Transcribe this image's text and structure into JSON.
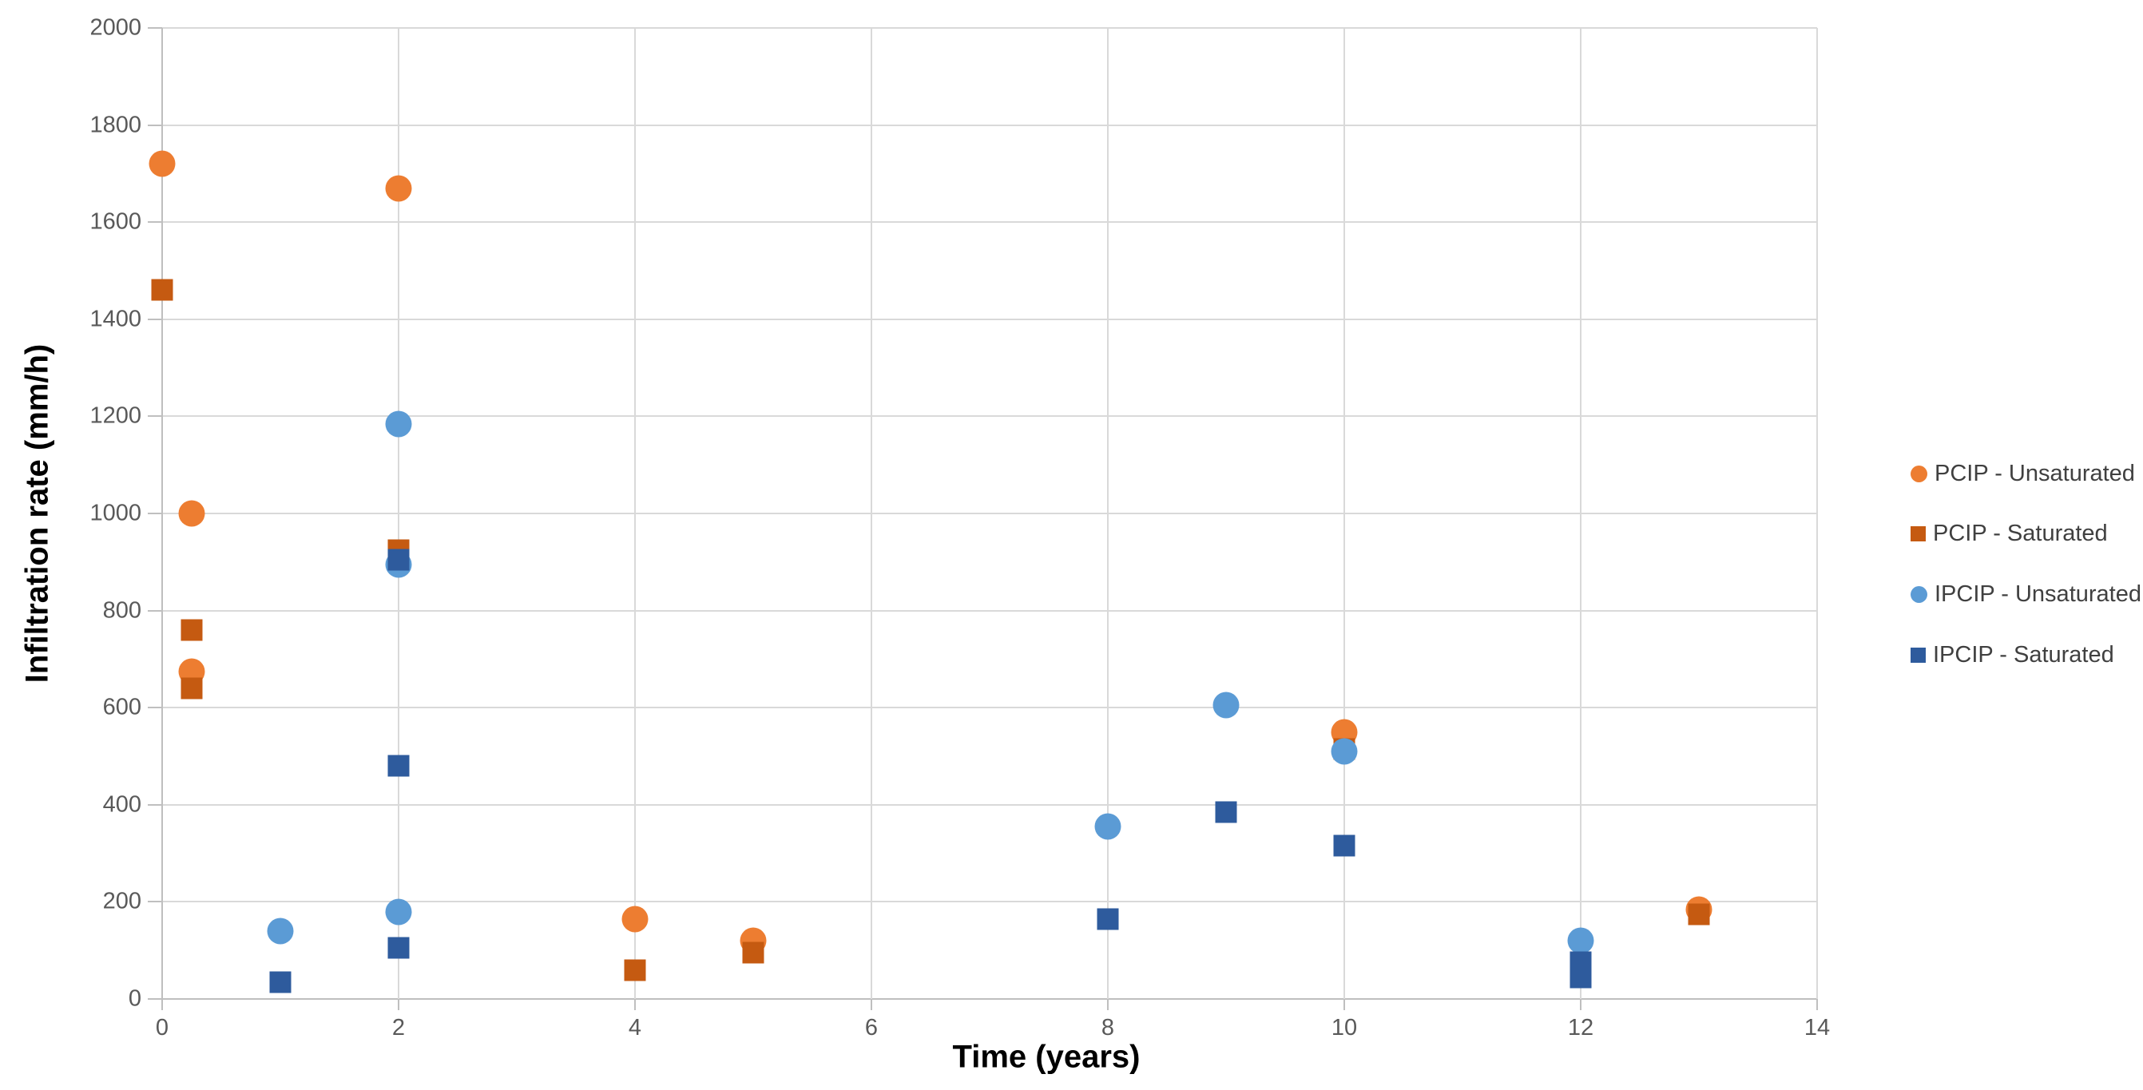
{
  "chart_data": {
    "type": "scatter",
    "title": "",
    "xlabel": "Time (years)",
    "ylabel": "Infiltration rate (mm/h)",
    "grid": true,
    "legend_position": "right",
    "background_color": "#FFFFFF",
    "gridline_color": "#D9D9D9",
    "axis_line_color": "#BFBFBF",
    "tick_label_color": "#595959",
    "legend_text_color": "#404040",
    "x_axis": {
      "min": 0,
      "max": 14,
      "step": 2,
      "ticks": [
        "0",
        "2",
        "4",
        "6",
        "8",
        "10",
        "12",
        "14"
      ]
    },
    "y_axis": {
      "min": 0,
      "max": 2000,
      "step": 200,
      "ticks": [
        "0",
        "200",
        "400",
        "600",
        "800",
        "1000",
        "1200",
        "1400",
        "1600",
        "1800",
        "2000"
      ]
    },
    "series": [
      {
        "name": "PCIP - Unsaturated",
        "marker": "circle",
        "color": "#ED7D31",
        "points": [
          [
            0,
            1720
          ],
          [
            0.25,
            1000
          ],
          [
            0.25,
            675
          ],
          [
            2,
            1670
          ],
          [
            4,
            165
          ],
          [
            5,
            120
          ],
          [
            10,
            550
          ],
          [
            13,
            185
          ]
        ]
      },
      {
        "name": "PCIP - Saturated",
        "marker": "square",
        "color": "#C55A11",
        "points": [
          [
            0,
            1460
          ],
          [
            0.25,
            760
          ],
          [
            0.25,
            640
          ],
          [
            2,
            925
          ],
          [
            4,
            60
          ],
          [
            5,
            95
          ],
          [
            10,
            515
          ],
          [
            13,
            175
          ]
        ]
      },
      {
        "name": "IPCIP - Unsaturated",
        "marker": "circle",
        "color": "#5B9BD5",
        "points": [
          [
            1,
            140
          ],
          [
            2,
            1185
          ],
          [
            2,
            895
          ],
          [
            2,
            180
          ],
          [
            8,
            355
          ],
          [
            9,
            605
          ],
          [
            10,
            510
          ],
          [
            12,
            120
          ]
        ]
      },
      {
        "name": "IPCIP - Saturated",
        "marker": "square",
        "color": "#2E5B9D",
        "points": [
          [
            1,
            35
          ],
          [
            2,
            905
          ],
          [
            2,
            480
          ],
          [
            2,
            105
          ],
          [
            8,
            165
          ],
          [
            9,
            385
          ],
          [
            10,
            315
          ],
          [
            12,
            75
          ],
          [
            12,
            45
          ]
        ]
      }
    ]
  }
}
